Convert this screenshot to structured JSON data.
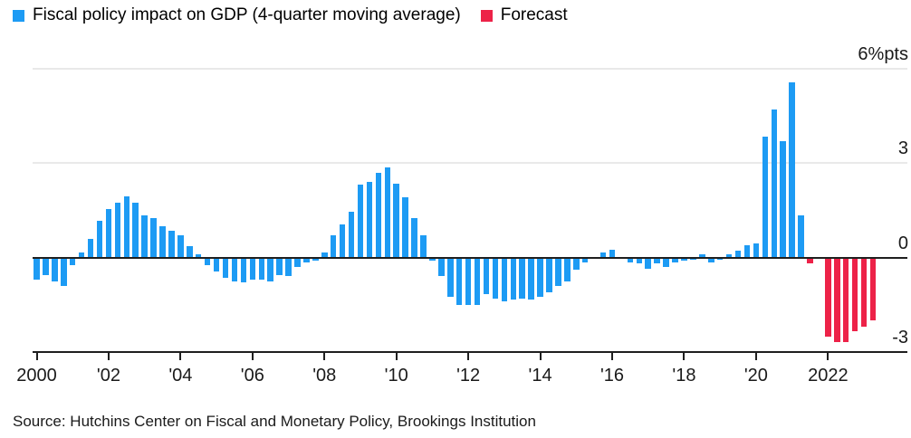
{
  "legend": {
    "items": [
      {
        "label": "Fiscal policy impact on GDP (4-quarter moving average)",
        "color": "#1d9bf4"
      },
      {
        "label": "Forecast",
        "color": "#ed2248"
      }
    ]
  },
  "chart_data": {
    "type": "bar",
    "title": "Fiscal policy impact on GDP (4-quarter moving average)",
    "frequency": "quarterly",
    "unit": "%pts",
    "ylim": [
      -3,
      7
    ],
    "grid": "horizontal",
    "legend_position": "top-left",
    "y_ticks": [
      {
        "value": 6,
        "label": "6%pts"
      },
      {
        "value": 3,
        "label": "3"
      },
      {
        "value": 0,
        "label": "0"
      },
      {
        "value": -3,
        "label": "-3"
      }
    ],
    "x_ticks": [
      {
        "year": 2000,
        "label": "2000"
      },
      {
        "year": 2002,
        "label": "'02"
      },
      {
        "year": 2004,
        "label": "'04"
      },
      {
        "year": 2006,
        "label": "'06"
      },
      {
        "year": 2008,
        "label": "'08"
      },
      {
        "year": 2010,
        "label": "'10"
      },
      {
        "year": 2012,
        "label": "'12"
      },
      {
        "year": 2014,
        "label": "'14"
      },
      {
        "year": 2016,
        "label": "'16"
      },
      {
        "year": 2018,
        "label": "'18"
      },
      {
        "year": 2020,
        "label": "'20"
      },
      {
        "year": 2022,
        "label": "2022"
      }
    ],
    "series": [
      {
        "name": "Fiscal policy impact on GDP (4-quarter moving average)",
        "color": "#1d9bf4",
        "start": "2000Q1",
        "values": [
          -0.7,
          -0.55,
          -0.75,
          -0.9,
          -0.25,
          0.15,
          0.6,
          1.15,
          1.55,
          1.75,
          1.95,
          1.75,
          1.35,
          1.25,
          1.0,
          0.85,
          0.7,
          0.35,
          0.1,
          -0.25,
          -0.45,
          -0.65,
          -0.75,
          -0.8,
          -0.7,
          -0.7,
          -0.75,
          -0.55,
          -0.6,
          -0.3,
          -0.15,
          -0.1,
          0.15,
          0.7,
          1.05,
          1.45,
          2.3,
          2.4,
          2.7,
          2.85,
          2.35,
          1.9,
          1.25,
          0.7,
          -0.1,
          -0.6,
          -1.25,
          -1.5,
          -1.5,
          -1.5,
          -1.15,
          -1.3,
          -1.4,
          -1.35,
          -1.3,
          -1.35,
          -1.25,
          -1.1,
          -0.9,
          -0.75,
          -0.4,
          -0.15,
          -0.05,
          0.15,
          0.25,
          0,
          -0.15,
          -0.2,
          -0.35,
          -0.2,
          -0.3,
          -0.16,
          -0.1,
          -0.06,
          0.11,
          -0.16,
          -0.07,
          0.09,
          0.21,
          0.4,
          0.45,
          3.85,
          4.7,
          3.7,
          5.55,
          1.35
        ]
      },
      {
        "name": "Forecast",
        "color": "#ed2248",
        "start": "2021Q3",
        "values": [
          -0.2,
          -0.05,
          -2.5,
          -2.7,
          -2.7,
          -2.35,
          -2.2,
          -2.0
        ]
      }
    ]
  },
  "source": "Source: Hutchins Center on Fiscal and Monetary Policy, Brookings Institution"
}
